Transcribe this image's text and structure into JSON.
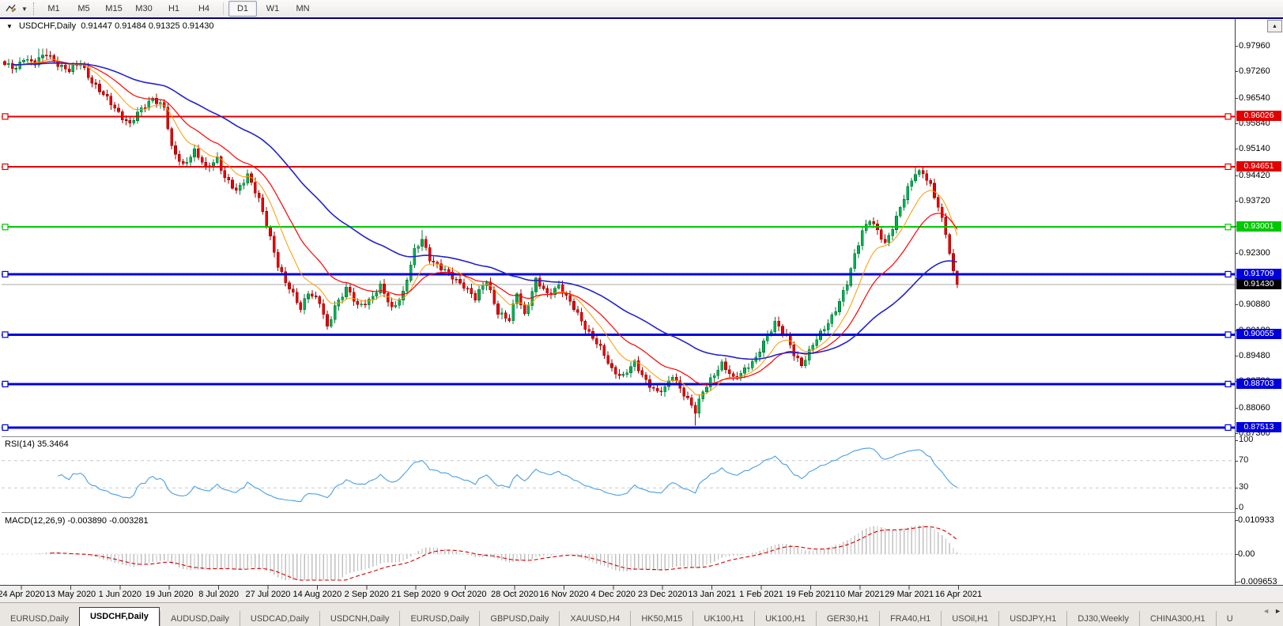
{
  "toolbar": {
    "tool_icon": "chart-cursor-icon",
    "dropdown_glyph": "▼",
    "timeframes": [
      {
        "label": "M1",
        "active": false
      },
      {
        "label": "M5",
        "active": false
      },
      {
        "label": "M15",
        "active": false
      },
      {
        "label": "M30",
        "active": false
      },
      {
        "label": "H1",
        "active": false
      },
      {
        "label": "H4",
        "active": false
      },
      {
        "label": "D1",
        "active": true
      },
      {
        "label": "W1",
        "active": false
      },
      {
        "label": "MN",
        "active": false
      }
    ],
    "window_up_glyph": "▲"
  },
  "chart": {
    "title": {
      "dropdown": "▼",
      "symbol_label": "USDCHF,Daily",
      "open": "0.91447",
      "high": "0.91484",
      "low": "0.91325",
      "close": "0.91430"
    },
    "price_axis": {
      "ticks": [
        "0.97960",
        "0.97260",
        "0.96540",
        "0.95840",
        "0.95140",
        "0.94420",
        "0.93720",
        "0.93020",
        "0.92300",
        "0.91600",
        "0.90880",
        "0.90180",
        "0.89480",
        "0.88780",
        "0.88060",
        "0.87360"
      ],
      "price_at_plot_top": 0.98695,
      "price_at_plot_bottom": 0.87273
    },
    "hlines": [
      {
        "price": 0.96026,
        "label": "0.96026",
        "color": "#e00000",
        "width": 2
      },
      {
        "price": 0.94651,
        "label": "0.94651",
        "color": "#e00000",
        "width": 2
      },
      {
        "price": 0.93001,
        "label": "0.93001",
        "color": "#00c800",
        "width": 2
      },
      {
        "price": 0.91709,
        "label": "0.91709",
        "color": "#0000dd",
        "width": 3
      },
      {
        "price": 0.90055,
        "label": "0.90055",
        "color": "#0000dd",
        "width": 3
      },
      {
        "price": 0.88703,
        "label": "0.88703",
        "color": "#0000dd",
        "width": 3
      },
      {
        "price": 0.87513,
        "label": "0.87513",
        "color": "#0000dd",
        "width": 3
      }
    ],
    "current_price": {
      "label": "0.91430",
      "value": 0.9143,
      "line_color": "#a9a9a9",
      "label_bg": "#000000"
    },
    "date_axis": {
      "labels": [
        "24 Apr 2020",
        "13 May 2020",
        "1 Jun 2020",
        "19 Jun 2020",
        "8 Jul 2020",
        "27 Jul 2020",
        "14 Aug 2020",
        "2 Sep 2020",
        "21 Sep 2020",
        "9 Oct 2020",
        "28 Oct 2020",
        "16 Nov 2020",
        "4 Dec 2020",
        "23 Dec 2020",
        "13 Jan 2021",
        "1 Feb 2021",
        "19 Feb 2021",
        "10 Mar 2021",
        "29 Mar 2021",
        "16 Apr 2021"
      ]
    },
    "chart_data": {
      "type": "candlestick",
      "symbol": "USDCHF",
      "timeframe": "Daily",
      "title": "USDCHF,Daily",
      "ohlc_current": {
        "open": 0.91447,
        "high": 0.91484,
        "low": 0.91325,
        "close": 0.9143
      },
      "x_range": [
        "24 Apr 2020",
        "16 Apr 2021"
      ],
      "ylim": [
        0.87273,
        0.98695
      ],
      "bars": 252,
      "up_color": "#00b050",
      "down_color": "#e80000",
      "close_path_anchors": [
        [
          0,
          0.9745
        ],
        [
          3,
          0.973
        ],
        [
          5,
          0.9765
        ],
        [
          8,
          0.975
        ],
        [
          11,
          0.9772
        ],
        [
          14,
          0.9748
        ],
        [
          17,
          0.9728
        ],
        [
          20,
          0.9748
        ],
        [
          23,
          0.97
        ],
        [
          26,
          0.966
        ],
        [
          30,
          0.9615
        ],
        [
          33,
          0.958
        ],
        [
          36,
          0.9622
        ],
        [
          39,
          0.9655
        ],
        [
          42,
          0.9625
        ],
        [
          44,
          0.9515
        ],
        [
          47,
          0.9472
        ],
        [
          50,
          0.9505
        ],
        [
          53,
          0.9462
        ],
        [
          56,
          0.949
        ],
        [
          58,
          0.9432
        ],
        [
          61,
          0.9398
        ],
        [
          64,
          0.9446
        ],
        [
          67,
          0.9372
        ],
        [
          70,
          0.9272
        ],
        [
          72,
          0.9198
        ],
        [
          74,
          0.9148
        ],
        [
          76,
          0.9112
        ],
        [
          78,
          0.9078
        ],
        [
          80,
          0.9125
        ],
        [
          83,
          0.9092
        ],
        [
          85,
          0.9022
        ],
        [
          87,
          0.9086
        ],
        [
          90,
          0.9132
        ],
        [
          93,
          0.9082
        ],
        [
          96,
          0.9102
        ],
        [
          99,
          0.9136
        ],
        [
          102,
          0.9076
        ],
        [
          105,
          0.9122
        ],
        [
          108,
          0.9232
        ],
        [
          110,
          0.9266
        ],
        [
          112,
          0.9216
        ],
        [
          115,
          0.9186
        ],
        [
          118,
          0.9162
        ],
        [
          121,
          0.9142
        ],
        [
          124,
          0.9102
        ],
        [
          127,
          0.9156
        ],
        [
          130,
          0.9066
        ],
        [
          133,
          0.9042
        ],
        [
          135,
          0.9122
        ],
        [
          137,
          0.9062
        ],
        [
          140,
          0.9152
        ],
        [
          143,
          0.9116
        ],
        [
          146,
          0.9142
        ],
        [
          148,
          0.9106
        ],
        [
          151,
          0.9062
        ],
        [
          154,
          0.9012
        ],
        [
          157,
          0.8966
        ],
        [
          160,
          0.8912
        ],
        [
          163,
          0.8892
        ],
        [
          166,
          0.8926
        ],
        [
          169,
          0.8882
        ],
        [
          172,
          0.8846
        ],
        [
          174,
          0.8856
        ],
        [
          176,
          0.8896
        ],
        [
          178,
          0.8862
        ],
        [
          180,
          0.8826
        ],
        [
          182,
          0.8792
        ],
        [
          184,
          0.8852
        ],
        [
          186,
          0.8886
        ],
        [
          189,
          0.8922
        ],
        [
          192,
          0.8886
        ],
        [
          195,
          0.8912
        ],
        [
          198,
          0.8936
        ],
        [
          200,
          0.8986
        ],
        [
          203,
          0.9042
        ],
        [
          206,
          0.8996
        ],
        [
          208,
          0.8952
        ],
        [
          210,
          0.8926
        ],
        [
          213,
          0.8976
        ],
        [
          216,
          0.9022
        ],
        [
          219,
          0.9076
        ],
        [
          222,
          0.9142
        ],
        [
          224,
          0.9222
        ],
        [
          226,
          0.9292
        ],
        [
          228,
          0.9322
        ],
        [
          230,
          0.9286
        ],
        [
          232,
          0.9252
        ],
        [
          234,
          0.9302
        ],
        [
          236,
          0.9356
        ],
        [
          238,
          0.9402
        ],
        [
          240,
          0.9446
        ],
        [
          242,
          0.9452
        ],
        [
          244,
          0.9416
        ],
        [
          246,
          0.9352
        ],
        [
          248,
          0.9282
        ],
        [
          249,
          0.9228
        ],
        [
          250,
          0.9178
        ],
        [
          251,
          0.9143
        ]
      ],
      "moving_averages": [
        {
          "period": 10,
          "color": "#ff9900",
          "width": 1
        },
        {
          "period": 21,
          "color": "#ff0000",
          "width": 1.2
        },
        {
          "period": 55,
          "color": "#2222cc",
          "width": 1.6
        }
      ],
      "support_resistance": [
        0.96026,
        0.94651,
        0.93001,
        0.91709,
        0.90055,
        0.88703,
        0.87513
      ],
      "indicators": [
        {
          "name": "RSI",
          "period": 14,
          "current": 35.3464,
          "levels": [
            70,
            30
          ],
          "line_color": "#4a9fe3"
        },
        {
          "name": "MACD",
          "params": [
            12,
            26,
            9
          ],
          "current_main": -0.00389,
          "current_signal": -0.003281,
          "histogram_color": "#c0c0c0",
          "signal_color": "#d00000",
          "scale_max": 0.010933,
          "scale_min": -0.009653
        }
      ]
    }
  },
  "rsi_panel": {
    "label": "RSI(14) 35.3464",
    "scale": [
      {
        "value": 100,
        "label": "100"
      },
      {
        "value": 70,
        "label": "70"
      },
      {
        "value": 30,
        "label": "30"
      },
      {
        "value": 0,
        "label": "0"
      }
    ]
  },
  "macd_panel": {
    "label": "MACD(12,26,9) -0.003890 -0.003281",
    "scale_top": "0.010933",
    "scale_zero": "0.00",
    "scale_bottom": "-0.009653"
  },
  "tabs": {
    "items": [
      {
        "label": "EURUSD,Daily",
        "active": false
      },
      {
        "label": "USDCHF,Daily",
        "active": true
      },
      {
        "label": "AUDUSD,Daily",
        "active": false
      },
      {
        "label": "USDCAD,Daily",
        "active": false
      },
      {
        "label": "USDCNH,Daily",
        "active": false
      },
      {
        "label": "EURUSD,Daily",
        "active": false
      },
      {
        "label": "GBPUSD,Daily",
        "active": false
      },
      {
        "label": "XAUUSD,H4",
        "active": false
      },
      {
        "label": "HK50,M15",
        "active": false
      },
      {
        "label": "UK100,H1",
        "active": false
      },
      {
        "label": "UK100,H1",
        "active": false
      },
      {
        "label": "GER30,H1",
        "active": false
      },
      {
        "label": "FRA40,H1",
        "active": false
      },
      {
        "label": "USOil,H1",
        "active": false
      },
      {
        "label": "USDJPY,H1",
        "active": false
      },
      {
        "label": "DJ30,Weekly",
        "active": false
      },
      {
        "label": "CHINA300,H1",
        "active": false
      },
      {
        "label": "U",
        "active": false
      }
    ],
    "scroll_left": "◄",
    "scroll_right": "►"
  }
}
